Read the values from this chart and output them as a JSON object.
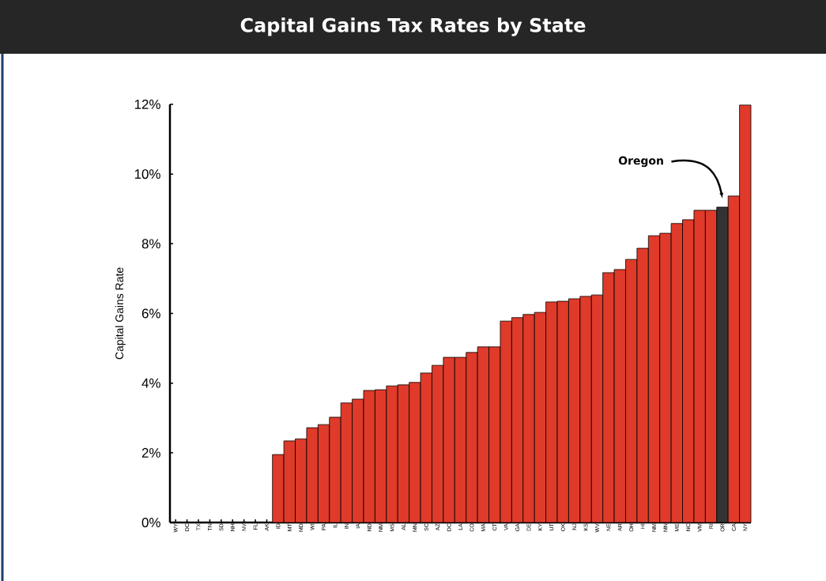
{
  "chart_data": {
    "type": "bar",
    "title": "Capital Gains Tax Rates by State",
    "ylabel": "Capital Gains Rate",
    "categories": [
      "WY",
      "DC",
      "TX",
      "TN",
      "SD",
      "NH",
      "NV",
      "FL",
      "AK",
      "ID",
      "MT",
      "MD",
      "WI",
      "PA",
      "IL",
      "IN",
      "IA",
      "ND",
      "NM",
      "MS",
      "AL",
      "MN",
      "SC",
      "AZ",
      "DC",
      "LA",
      "CO",
      "MA",
      "CT",
      "VA",
      "GA",
      "DE",
      "KY",
      "UT",
      "OK",
      "NJ",
      "KS",
      "WV",
      "NE",
      "AR",
      "OH",
      "HI",
      "NM",
      "MN",
      "ME",
      "NC",
      "VM",
      "RI",
      "OR",
      "CA",
      "NY"
    ],
    "values": [
      0,
      0,
      0,
      0,
      0,
      0,
      0,
      0,
      0,
      1.95,
      2.34,
      2.4,
      2.72,
      2.81,
      3.02,
      3.43,
      3.54,
      3.79,
      3.81,
      3.92,
      3.95,
      4.02,
      4.29,
      4.51,
      4.74,
      4.74,
      4.88,
      5.04,
      5.04,
      5.78,
      5.88,
      5.97,
      6.03,
      6.33,
      6.35,
      6.42,
      6.49,
      6.53,
      7.17,
      7.26,
      7.55,
      7.87,
      8.23,
      8.3,
      8.58,
      8.69,
      8.96,
      8.96,
      9.05,
      9.37,
      11.98
    ],
    "colors": [
      "#e03a2a",
      "#e03a2a",
      "#e03a2a",
      "#e03a2a",
      "#e03a2a",
      "#e03a2a",
      "#e03a2a",
      "#e03a2a",
      "#e03a2a",
      "#e03a2a",
      "#e03a2a",
      "#e03a2a",
      "#e03a2a",
      "#e03a2a",
      "#e03a2a",
      "#e03a2a",
      "#e03a2a",
      "#e03a2a",
      "#e03a2a",
      "#e03a2a",
      "#e03a2a",
      "#e03a2a",
      "#e03a2a",
      "#e03a2a",
      "#e03a2a",
      "#e03a2a",
      "#e03a2a",
      "#e03a2a",
      "#e03a2a",
      "#e03a2a",
      "#e03a2a",
      "#e03a2a",
      "#e03a2a",
      "#e03a2a",
      "#e03a2a",
      "#e03a2a",
      "#e03a2a",
      "#e03a2a",
      "#e03a2a",
      "#e03a2a",
      "#e03a2a",
      "#e03a2a",
      "#e03a2a",
      "#e03a2a",
      "#e03a2a",
      "#e03a2a",
      "#e03a2a",
      "#e03a2a",
      "#333333",
      "#e03a2a",
      "#e03a2a"
    ],
    "ylim": [
      0,
      12
    ],
    "yticks": [
      {
        "value": 0,
        "label": "0%"
      },
      {
        "value": 2,
        "label": "2%"
      },
      {
        "value": 4,
        "label": "4%"
      },
      {
        "value": 6,
        "label": "6%"
      },
      {
        "value": 8,
        "label": "8%"
      },
      {
        "value": 10,
        "label": "10%"
      },
      {
        "value": 12,
        "label": "12%"
      }
    ],
    "annotations": [
      "Oregon"
    ]
  }
}
